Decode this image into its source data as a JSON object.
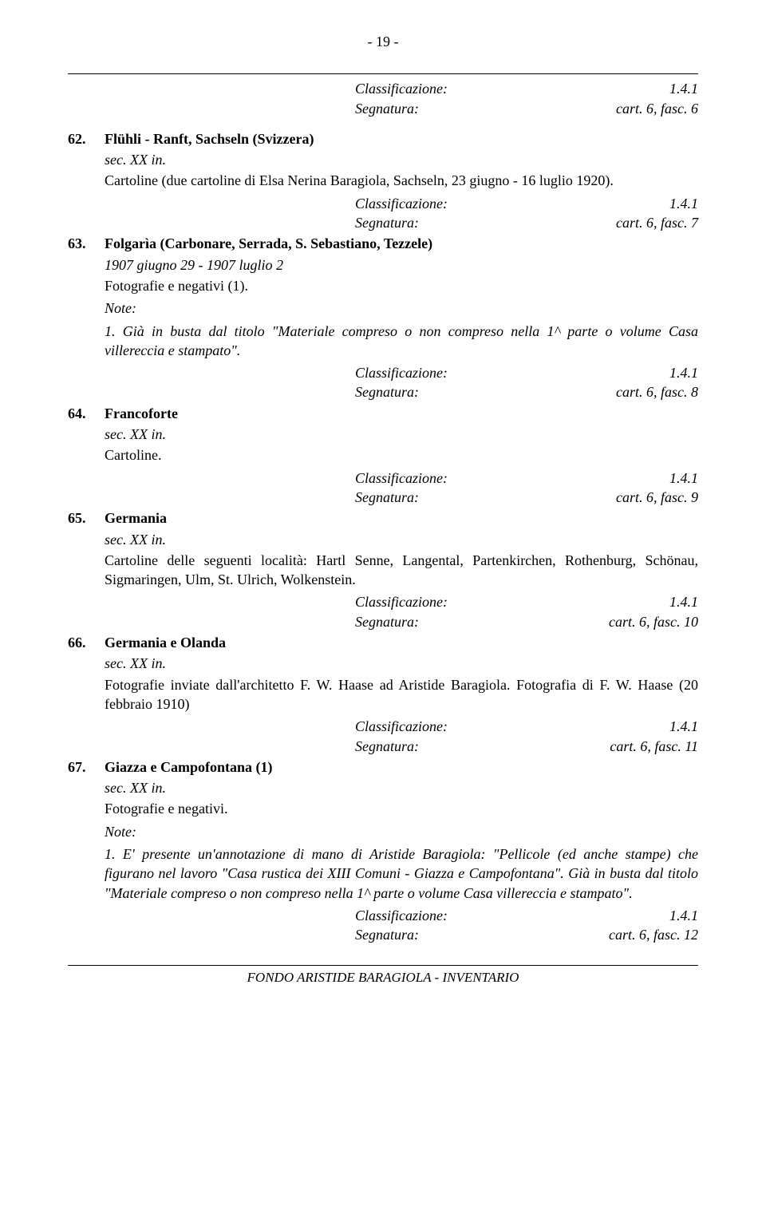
{
  "page_number": "- 19 -",
  "top_meta": {
    "class_label": "Classificazione:",
    "class_value": "1.4.1",
    "seg_label": "Segnatura:",
    "seg_value": "cart. 6, fasc. 6"
  },
  "entries": [
    {
      "num": "62.",
      "title": "Flühli - Ranft, Sachseln (Svizzera)",
      "date": "sec. XX in.",
      "desc": "Cartoline (due cartoline di Elsa Nerina Baragiola, Sachseln, 23 giugno - 16 luglio 1920).",
      "class_label": "Classificazione:",
      "class_value": "1.4.1",
      "seg_label": "Segnatura:",
      "seg_value": "cart. 6, fasc. 7"
    },
    {
      "num": "63.",
      "title": "Folgarìa (Carbonare, Serrada, S. Sebastiano, Tezzele)",
      "date": "1907 giugno 29 - 1907 luglio 2",
      "desc": "Fotografie e negativi (1).",
      "note_label": "Note:",
      "note_text": "1. Già in busta dal titolo \"Materiale compreso o non compreso nella 1^ parte o volume Casa villereccia e stampato\".",
      "class_label": "Classificazione:",
      "class_value": "1.4.1",
      "seg_label": "Segnatura:",
      "seg_value": "cart. 6, fasc. 8"
    },
    {
      "num": "64.",
      "title": "Francoforte",
      "date": "sec. XX in.",
      "desc": "Cartoline.",
      "class_label": "Classificazione:",
      "class_value": "1.4.1",
      "seg_label": "Segnatura:",
      "seg_value": "cart. 6, fasc. 9"
    },
    {
      "num": "65.",
      "title": "Germania",
      "date": "sec. XX in.",
      "desc": "Cartoline delle seguenti località: Hartl Senne, Langental, Partenkirchen, Rothenburg, Schönau, Sigmaringen, Ulm, St. Ulrich, Wolkenstein.",
      "class_label": "Classificazione:",
      "class_value": "1.4.1",
      "seg_label": "Segnatura:",
      "seg_value": "cart. 6, fasc. 10"
    },
    {
      "num": "66.",
      "title": "Germania e Olanda",
      "date": "sec. XX in.",
      "desc": "Fotografie inviate dall'architetto F. W. Haase ad Aristide Baragiola. Fotografia di F. W. Haase (20 febbraio 1910)",
      "class_label": "Classificazione:",
      "class_value": "1.4.1",
      "seg_label": "Segnatura:",
      "seg_value": "cart. 6, fasc. 11"
    },
    {
      "num": "67.",
      "title": "Giazza e Campofontana (1)",
      "date": "sec. XX in.",
      "desc": "Fotografie e negativi.",
      "note_label": "Note:",
      "note_text": "1. E' presente un'annotazione di mano di Aristide Baragiola: \"Pellicole (ed anche stampe) che figurano nel lavoro \"Casa rustica dei XIII Comuni - Giazza e Campofontana\". Già in busta dal titolo \"Materiale compreso o non compreso nella 1^ parte o volume Casa villereccia e stampato\".",
      "class_label": "Classificazione:",
      "class_value": "1.4.1",
      "seg_label": "Segnatura:",
      "seg_value": "cart. 6, fasc. 12"
    }
  ],
  "footer": "FONDO ARISTIDE BARAGIOLA - INVENTARIO"
}
